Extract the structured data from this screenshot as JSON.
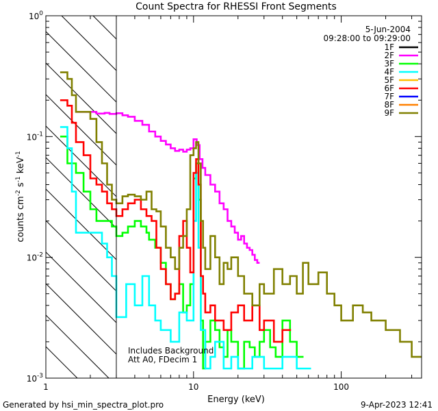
{
  "chart_data": {
    "type": "line",
    "title": "Count Spectra for RHESSI Front Segments",
    "xlabel": "Energy (keV)",
    "ylabel_main": "counts cm",
    "ylabel_sup1": "-2",
    "ylabel_mid": " s",
    "ylabel_sup2": "-1",
    "ylabel_end": " keV",
    "ylabel_sup3": "-1",
    "xscale": "log",
    "yscale": "log",
    "xlim": [
      1,
      350
    ],
    "ylim": [
      0.001,
      1
    ],
    "x_ticks": [
      {
        "value": 1,
        "label": "1"
      },
      {
        "value": 10,
        "label": "10"
      },
      {
        "value": 100,
        "label": "100"
      }
    ],
    "y_ticks": [
      {
        "value": 0.001,
        "base": "10",
        "exp": "-3"
      },
      {
        "value": 0.01,
        "base": "10",
        "exp": "-2"
      },
      {
        "value": 0.1,
        "base": "10",
        "exp": "-1"
      },
      {
        "value": 1,
        "base": "10",
        "exp": "0"
      }
    ],
    "hatch_region": {
      "x_from": 1,
      "x_to": 3
    },
    "date": "5-Jun-2004",
    "time_range": "09:28:00 to 09:29:00",
    "annotations": [
      "Includes Background",
      "Att A0, FDecim 1"
    ],
    "legend_position": "top-right",
    "series": [
      {
        "name": "1F",
        "color": "#000000",
        "points": []
      },
      {
        "name": "2F",
        "color": "#ff00ff",
        "points": [
          [
            1.6,
            0.16
          ],
          [
            1.8,
            0.16
          ],
          [
            2.0,
            0.16
          ],
          [
            2.2,
            0.155
          ],
          [
            2.5,
            0.157
          ],
          [
            2.7,
            0.154
          ],
          [
            3.0,
            0.156
          ],
          [
            3.3,
            0.15
          ],
          [
            3.6,
            0.146
          ],
          [
            4.0,
            0.135
          ],
          [
            4.5,
            0.125
          ],
          [
            5.0,
            0.11
          ],
          [
            5.5,
            0.1
          ],
          [
            6.0,
            0.092
          ],
          [
            6.5,
            0.086
          ],
          [
            7.0,
            0.08
          ],
          [
            7.5,
            0.076
          ],
          [
            8.0,
            0.078
          ],
          [
            8.5,
            0.075
          ],
          [
            9.0,
            0.078
          ],
          [
            9.5,
            0.08
          ],
          [
            10.0,
            0.095
          ],
          [
            10.5,
            0.085
          ],
          [
            11.0,
            0.065
          ],
          [
            11.5,
            0.055
          ],
          [
            12.0,
            0.048
          ],
          [
            13.0,
            0.04
          ],
          [
            14.0,
            0.035
          ],
          [
            15.0,
            0.028
          ],
          [
            16.0,
            0.025
          ],
          [
            17.0,
            0.02
          ],
          [
            18.0,
            0.018
          ],
          [
            19.0,
            0.016
          ],
          [
            20.0,
            0.014
          ],
          [
            21.0,
            0.015
          ],
          [
            22.0,
            0.013
          ],
          [
            23.0,
            0.012
          ],
          [
            24.0,
            0.0115
          ],
          [
            25.0,
            0.0105
          ],
          [
            26.0,
            0.0095
          ],
          [
            27.0,
            0.009
          ]
        ]
      },
      {
        "name": "3F",
        "color": "#00ff00",
        "points": [
          [
            1.25,
            0.1
          ],
          [
            1.4,
            0.06
          ],
          [
            1.6,
            0.05
          ],
          [
            1.8,
            0.035
          ],
          [
            2.0,
            0.025
          ],
          [
            2.2,
            0.02
          ],
          [
            2.4,
            0.02
          ],
          [
            2.6,
            0.02
          ],
          [
            2.8,
            0.018
          ],
          [
            3.0,
            0.015
          ],
          [
            3.3,
            0.016
          ],
          [
            3.6,
            0.018
          ],
          [
            4.0,
            0.02
          ],
          [
            4.4,
            0.018
          ],
          [
            4.8,
            0.016
          ],
          [
            5.0,
            0.014
          ],
          [
            5.5,
            0.012
          ],
          [
            6.0,
            0.009
          ],
          [
            6.5,
            0.006
          ],
          [
            7.0,
            0.0045
          ],
          [
            7.5,
            0.005
          ],
          [
            8.0,
            0.006
          ],
          [
            8.5,
            0.0035
          ],
          [
            9.0,
            0.004
          ],
          [
            9.5,
            0.006
          ],
          [
            10.0,
            0.045
          ],
          [
            10.4,
            0.06
          ],
          [
            10.8,
            0.03
          ],
          [
            11.2,
            0.003
          ],
          [
            11.6,
            0.0012
          ],
          [
            12.0,
            0.002
          ],
          [
            13.0,
            0.003
          ],
          [
            14.0,
            0.0025
          ],
          [
            15.0,
            0.0018
          ],
          [
            16.0,
            0.0015
          ],
          [
            17.0,
            0.0025
          ],
          [
            18.0,
            0.002
          ],
          [
            20.0,
            0.0012
          ],
          [
            22.0,
            0.002
          ],
          [
            24.0,
            0.0018
          ],
          [
            26.0,
            0.0015
          ],
          [
            28.0,
            0.002
          ],
          [
            30.0,
            0.0025
          ],
          [
            33.0,
            0.0018
          ],
          [
            36.0,
            0.0015
          ],
          [
            40.0,
            0.003
          ],
          [
            45.0,
            0.002
          ],
          [
            50.0,
            0.0015
          ]
        ]
      },
      {
        "name": "4F",
        "color": "#00ffff",
        "points": [
          [
            1.25,
            0.12
          ],
          [
            1.4,
            0.08
          ],
          [
            1.5,
            0.035
          ],
          [
            1.6,
            0.016
          ],
          [
            1.8,
            0.016
          ],
          [
            2.0,
            0.016
          ],
          [
            2.2,
            0.016
          ],
          [
            2.4,
            0.013
          ],
          [
            2.6,
            0.01
          ],
          [
            2.8,
            0.007
          ],
          [
            3.0,
            0.0032
          ],
          [
            3.5,
            0.006
          ],
          [
            4.0,
            0.004
          ],
          [
            4.5,
            0.007
          ],
          [
            5.0,
            0.004
          ],
          [
            5.5,
            0.003
          ],
          [
            6.0,
            0.0025
          ],
          [
            7.0,
            0.002
          ],
          [
            8.0,
            0.0035
          ],
          [
            9.0,
            0.003
          ],
          [
            10.0,
            0.02
          ],
          [
            10.4,
            0.05
          ],
          [
            10.8,
            0.012
          ],
          [
            11.2,
            0.0025
          ],
          [
            12.0,
            0.0012
          ],
          [
            13.0,
            0.0015
          ],
          [
            14.0,
            0.002
          ],
          [
            16.0,
            0.0012
          ],
          [
            18.0,
            0.0015
          ],
          [
            20.0,
            0.0012
          ],
          [
            25.0,
            0.0015
          ],
          [
            30.0,
            0.0012
          ],
          [
            40.0,
            0.0015
          ],
          [
            50.0,
            0.0012
          ]
        ]
      },
      {
        "name": "6F",
        "color": "#ff0000",
        "points": [
          [
            1.25,
            0.2
          ],
          [
            1.4,
            0.18
          ],
          [
            1.5,
            0.13
          ],
          [
            1.6,
            0.09
          ],
          [
            1.8,
            0.07
          ],
          [
            2.0,
            0.045
          ],
          [
            2.2,
            0.04
          ],
          [
            2.4,
            0.035
          ],
          [
            2.6,
            0.028
          ],
          [
            2.8,
            0.025
          ],
          [
            3.0,
            0.022
          ],
          [
            3.3,
            0.025
          ],
          [
            3.6,
            0.028
          ],
          [
            4.0,
            0.03
          ],
          [
            4.4,
            0.025
          ],
          [
            4.8,
            0.022
          ],
          [
            5.2,
            0.02
          ],
          [
            5.6,
            0.012
          ],
          [
            6.0,
            0.008
          ],
          [
            6.5,
            0.006
          ],
          [
            7.0,
            0.0045
          ],
          [
            7.5,
            0.005
          ],
          [
            8.0,
            0.015
          ],
          [
            8.5,
            0.02
          ],
          [
            9.0,
            0.012
          ],
          [
            9.5,
            0.0075
          ],
          [
            10.0,
            0.05
          ],
          [
            10.4,
            0.065
          ],
          [
            10.8,
            0.04
          ],
          [
            11.2,
            0.007
          ],
          [
            11.6,
            0.005
          ],
          [
            12.0,
            0.0035
          ],
          [
            13.0,
            0.004
          ],
          [
            14.0,
            0.003
          ],
          [
            16.0,
            0.0025
          ],
          [
            18.0,
            0.0035
          ],
          [
            20.0,
            0.004
          ],
          [
            22.0,
            0.003
          ],
          [
            25.0,
            0.004
          ],
          [
            28.0,
            0.0025
          ],
          [
            30.0,
            0.003
          ],
          [
            35.0,
            0.002
          ],
          [
            40.0,
            0.0025
          ]
        ]
      },
      {
        "name": "9F",
        "color": "#808000",
        "points": [
          [
            1.25,
            0.34
          ],
          [
            1.4,
            0.3
          ],
          [
            1.5,
            0.22
          ],
          [
            1.6,
            0.16
          ],
          [
            1.8,
            0.16
          ],
          [
            2.0,
            0.14
          ],
          [
            2.2,
            0.09
          ],
          [
            2.4,
            0.06
          ],
          [
            2.6,
            0.04
          ],
          [
            2.8,
            0.03
          ],
          [
            3.0,
            0.028
          ],
          [
            3.3,
            0.032
          ],
          [
            3.6,
            0.033
          ],
          [
            4.0,
            0.032
          ],
          [
            4.4,
            0.03
          ],
          [
            4.8,
            0.035
          ],
          [
            5.2,
            0.025
          ],
          [
            5.6,
            0.024
          ],
          [
            6.0,
            0.018
          ],
          [
            6.5,
            0.012
          ],
          [
            7.0,
            0.01
          ],
          [
            7.5,
            0.008
          ],
          [
            8.0,
            0.012
          ],
          [
            8.5,
            0.015
          ],
          [
            9.0,
            0.025
          ],
          [
            9.5,
            0.07
          ],
          [
            10.0,
            0.08
          ],
          [
            10.4,
            0.09
          ],
          [
            10.8,
            0.06
          ],
          [
            11.2,
            0.02
          ],
          [
            11.6,
            0.012
          ],
          [
            12.0,
            0.008
          ],
          [
            13.0,
            0.015
          ],
          [
            14.0,
            0.01
          ],
          [
            15.0,
            0.006
          ],
          [
            16.0,
            0.009
          ],
          [
            17.0,
            0.008
          ],
          [
            18.0,
            0.01
          ],
          [
            20.0,
            0.007
          ],
          [
            22.0,
            0.005
          ],
          [
            25.0,
            0.004
          ],
          [
            28.0,
            0.006
          ],
          [
            30.0,
            0.005
          ],
          [
            35.0,
            0.008
          ],
          [
            40.0,
            0.006
          ],
          [
            45.0,
            0.007
          ],
          [
            50.0,
            0.005
          ],
          [
            55.0,
            0.009
          ],
          [
            60.0,
            0.006
          ],
          [
            70.0,
            0.0075
          ],
          [
            80.0,
            0.005
          ],
          [
            90.0,
            0.004
          ],
          [
            100.0,
            0.003
          ],
          [
            120.0,
            0.004
          ],
          [
            140.0,
            0.0035
          ],
          [
            160.0,
            0.003
          ],
          [
            200.0,
            0.0025
          ],
          [
            250.0,
            0.002
          ],
          [
            300.0,
            0.0015
          ]
        ]
      }
    ],
    "legend": [
      {
        "name": "1F",
        "color": "#000000"
      },
      {
        "name": "2F",
        "color": "#ff00ff"
      },
      {
        "name": "3F",
        "color": "#00ff00"
      },
      {
        "name": "4F",
        "color": "#00ffff"
      },
      {
        "name": "5F",
        "color": "#ffbf00"
      },
      {
        "name": "6F",
        "color": "#ff0000"
      },
      {
        "name": "7F",
        "color": "#0000ff"
      },
      {
        "name": "8F",
        "color": "#ff8000"
      },
      {
        "name": "9F",
        "color": "#808000"
      }
    ]
  },
  "footer": {
    "left": "Generated by hsi_min_spectra_plot.pro",
    "right": "9-Apr-2023 12:41"
  }
}
